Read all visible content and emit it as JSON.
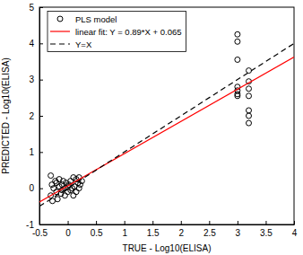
{
  "chart_data": {
    "type": "scatter",
    "x_label": "TRUE - Log10(ELISA)",
    "y_label": "PREDICTED - Log10(ELISA)",
    "xlim": [
      -0.5,
      4
    ],
    "ylim": [
      -1,
      5
    ],
    "xticks": [
      -0.5,
      0,
      0.5,
      1,
      1.5,
      2,
      2.5,
      3,
      3.5,
      4
    ],
    "yticks": [
      -1,
      0,
      1,
      2,
      3,
      4,
      5
    ],
    "grid": false,
    "legend": "upper left",
    "series": [
      {
        "name": "PLS model",
        "type": "scatter",
        "marker": "circle",
        "color": "#000000",
        "x": [
          -0.3,
          -0.3,
          -0.28,
          -0.27,
          -0.25,
          -0.22,
          -0.2,
          -0.2,
          -0.18,
          -0.15,
          -0.15,
          -0.12,
          -0.1,
          -0.1,
          -0.08,
          -0.05,
          -0.05,
          -0.03,
          0,
          0,
          0.02,
          0.05,
          0.05,
          0.08,
          0.1,
          0.1,
          0.12,
          0.15,
          0.15,
          0.18,
          0.2,
          0.2,
          0.22,
          0.25,
          3,
          3,
          3,
          3,
          3,
          3,
          3,
          3.2,
          3.2,
          3.2,
          3.2,
          3.2,
          3.2,
          3.2
        ],
        "values": [
          0.35,
          -0.2,
          0.1,
          -0.35,
          0,
          0.2,
          -0.1,
          0.15,
          -0.3,
          0.05,
          0.25,
          -0.15,
          0.1,
          -0.05,
          0.2,
          -0.2,
          0,
          0.15,
          0.05,
          -0.1,
          0.1,
          0.2,
          -0.05,
          0,
          0.3,
          -0.2,
          0.05,
          0.25,
          -0.1,
          0.15,
          0.3,
          0,
          0.1,
          0.2,
          4.25,
          4.05,
          3.55,
          2.8,
          2.7,
          2.6,
          2.55,
          3.25,
          2.95,
          2.75,
          2.55,
          2.15,
          2.0,
          1.8
        ]
      },
      {
        "name": "linear fit: Y = 0.89*X + 0.065",
        "type": "line",
        "line_style": "solid",
        "color": "#ff0000",
        "x": [
          -0.5,
          4
        ],
        "values": [
          -0.38,
          3.625
        ]
      },
      {
        "name": "Y=X",
        "type": "line",
        "line_style": "dashed",
        "color": "#000000",
        "x": [
          -0.5,
          4
        ],
        "values": [
          -0.5,
          4
        ]
      }
    ]
  }
}
